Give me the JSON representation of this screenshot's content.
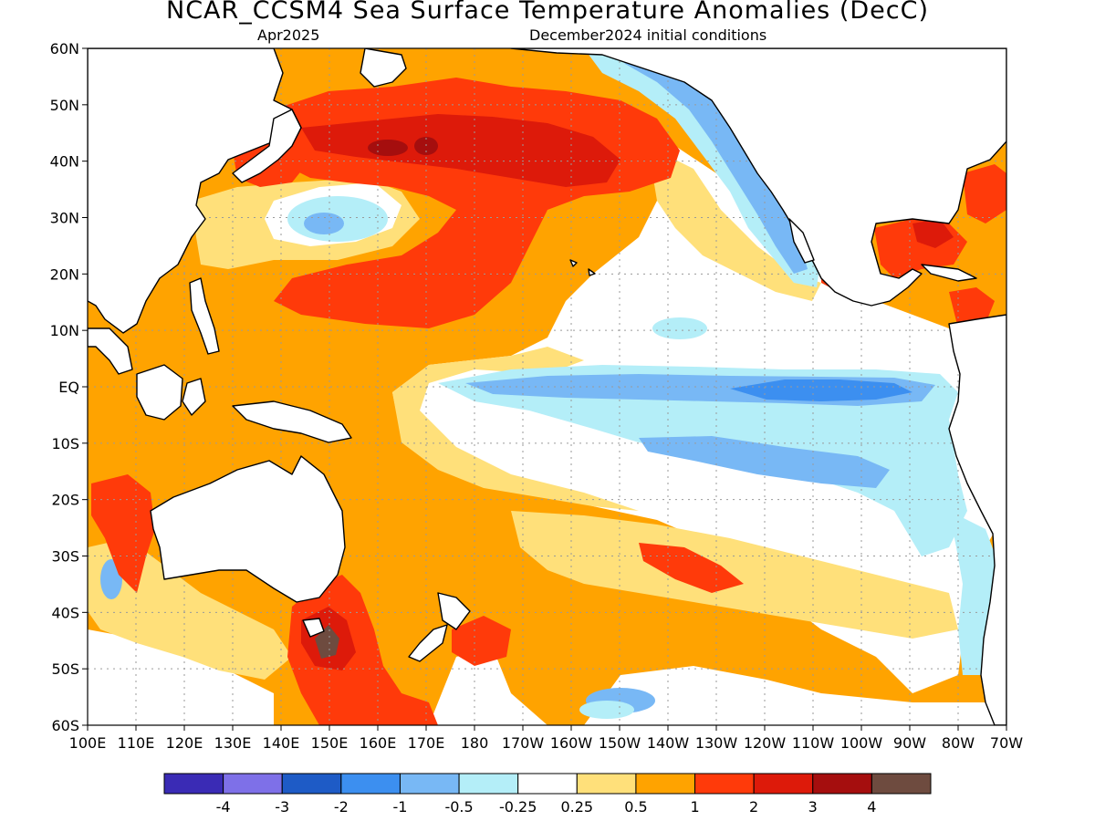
{
  "header": {
    "title": "NCAR_CCSM4 Sea Surface Temperature Anomalies (DecC)",
    "valid_month": "Apr2025",
    "initial_conditions": "December2024 initial conditions"
  },
  "map": {
    "lat_labels": [
      "60N",
      "50N",
      "40N",
      "30N",
      "20N",
      "10N",
      "EQ",
      "10S",
      "20S",
      "30S",
      "40S",
      "50S",
      "60S"
    ],
    "lon_labels": [
      "100E",
      "110E",
      "120E",
      "130E",
      "140E",
      "150E",
      "160E",
      "170E",
      "180",
      "170W",
      "160W",
      "150W",
      "140W",
      "130W",
      "120W",
      "110W",
      "100W",
      "90W",
      "80W",
      "70W"
    ]
  },
  "legend": {
    "colors": [
      "#3a2bb5",
      "#7e70e8",
      "#1e5bc6",
      "#3c8ff0",
      "#78b8f5",
      "#b4eef8",
      "#ffffff",
      "#ffe07a",
      "#ffa300",
      "#ff3a0a",
      "#dd1a0a",
      "#a50e0e",
      "#6e4b3f"
    ],
    "labels": [
      "-4",
      "-3",
      "-2",
      "-1",
      "-0.5",
      "-0.25",
      "0.25",
      "0.5",
      "1",
      "2",
      "3",
      "4"
    ]
  },
  "palette": {
    "yellow": "#ffe07a",
    "orange": "#ffa300",
    "red": "#ff3a0a",
    "darkred": "#dd1a0a",
    "deepred": "#a50e0e",
    "brown": "#6e4b3f",
    "lightcyan": "#b4eef8",
    "lightblue": "#78b8f5",
    "blue": "#3c8ff0"
  }
}
